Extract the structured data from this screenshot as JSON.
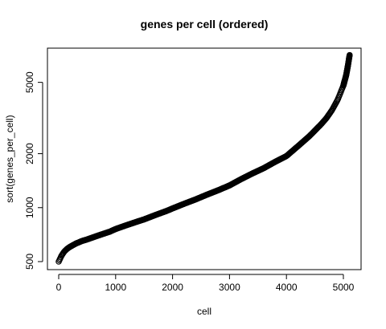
{
  "chart_data": {
    "type": "scatter",
    "title": "genes per cell (ordered)",
    "xlabel": "cell",
    "ylabel": "sort(genes_per_cell)",
    "xlim": [
      0,
      5100
    ],
    "ylim": [
      500,
      7000
    ],
    "y_scale": "log",
    "x_ticks": [
      0,
      1000,
      2000,
      3000,
      4000,
      5000
    ],
    "x_tick_labels": [
      "0",
      "1000",
      "2000",
      "3000",
      "4000",
      "5000"
    ],
    "y_ticks": [
      500,
      1000,
      2000,
      5000
    ],
    "y_tick_labels": [
      "500",
      "1000",
      "2000",
      "5000"
    ],
    "marker": "open-circle",
    "grid": false,
    "series": [
      {
        "x": [
          0,
          50,
          100,
          150,
          200,
          300,
          400,
          500,
          700,
          900,
          1000,
          1200,
          1400,
          1500,
          1700,
          1900,
          2000,
          2200,
          2400,
          2600,
          2800,
          3000,
          3200,
          3400,
          3600,
          3800,
          4000,
          4200,
          4400,
          4600,
          4700,
          4800,
          4900,
          5000,
          5050,
          5080,
          5100,
          5110
        ],
        "values": [
          500,
          540,
          570,
          590,
          605,
          630,
          650,
          665,
          700,
          735,
          760,
          800,
          840,
          860,
          910,
          960,
          990,
          1050,
          1110,
          1180,
          1250,
          1330,
          1440,
          1550,
          1660,
          1800,
          1940,
          2200,
          2500,
          2900,
          3150,
          3500,
          4000,
          4800,
          5500,
          6200,
          6800,
          7100
        ]
      }
    ]
  }
}
